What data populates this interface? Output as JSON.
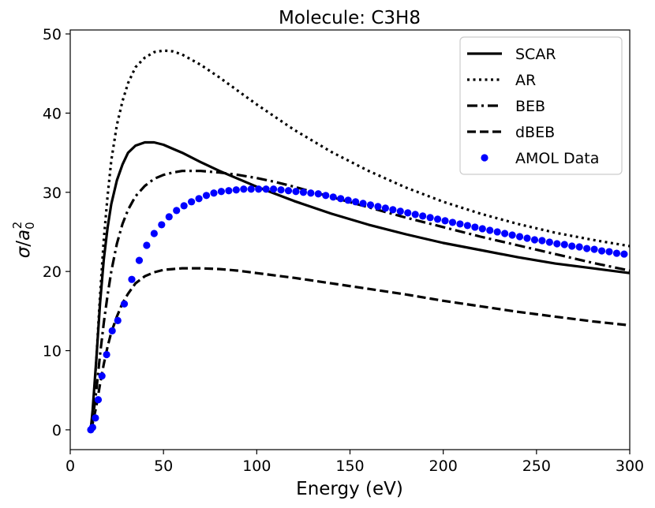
{
  "chart_data": {
    "type": "line",
    "title": "Molecule: C3H8",
    "xlabel": "Energy (eV)",
    "ylabel": "σ/a₀²",
    "xlim": [
      0,
      300
    ],
    "ylim": [
      -2.5,
      50.5
    ],
    "xticks": [
      0,
      50,
      100,
      150,
      200,
      250,
      300
    ],
    "yticks": [
      0,
      10,
      20,
      30,
      40,
      50
    ],
    "grid": false,
    "legend_position": "top-right",
    "series": [
      {
        "name": "SCAR",
        "style": "solid",
        "color": "#000000",
        "x": [
          11,
          12,
          14,
          16,
          18,
          20,
          22,
          25,
          28,
          31,
          35,
          40,
          45,
          50,
          55,
          60,
          70,
          80,
          90,
          100,
          120,
          140,
          160,
          180,
          200,
          220,
          240,
          260,
          280,
          300
        ],
        "y": [
          0,
          2.5,
          9,
          16,
          21.5,
          25.5,
          28.5,
          31.5,
          33.5,
          35,
          35.9,
          36.3,
          36.3,
          36,
          35.5,
          35,
          33.8,
          32.7,
          31.7,
          30.7,
          28.9,
          27.3,
          25.9,
          24.7,
          23.6,
          22.7,
          21.8,
          21,
          20.4,
          19.8
        ]
      },
      {
        "name": "AR",
        "style": "dotted",
        "color": "#000000",
        "x": [
          11,
          12,
          14,
          16,
          18,
          20,
          22,
          25,
          28,
          31,
          35,
          40,
          45,
          50,
          55,
          60,
          70,
          80,
          90,
          100,
          120,
          140,
          160,
          180,
          200,
          220,
          240,
          260,
          280,
          300
        ],
        "y": [
          0,
          2,
          9,
          17,
          24,
          29.5,
          34,
          38.5,
          41.5,
          43.8,
          45.8,
          47,
          47.7,
          47.9,
          47.8,
          47.4,
          46.1,
          44.5,
          42.8,
          41.1,
          37.9,
          35.1,
          32.7,
          30.6,
          28.8,
          27.3,
          26,
          24.9,
          24,
          23.2
        ]
      },
      {
        "name": "BEB",
        "style": "dashdot",
        "color": "#000000",
        "x": [
          11,
          12,
          14,
          16,
          18,
          20,
          22,
          25,
          28,
          31,
          35,
          40,
          45,
          50,
          55,
          60,
          65,
          70,
          80,
          90,
          100,
          110,
          120,
          140,
          160,
          180,
          200,
          220,
          240,
          260,
          280,
          300
        ],
        "y": [
          0,
          1.2,
          5,
          9.5,
          13.5,
          17,
          20,
          23.5,
          26,
          27.8,
          29.5,
          30.8,
          31.7,
          32.2,
          32.5,
          32.7,
          32.7,
          32.7,
          32.5,
          32.2,
          31.8,
          31.3,
          30.7,
          29.4,
          28.1,
          26.8,
          25.6,
          24.4,
          23.3,
          22.2,
          21.1,
          20.1
        ]
      },
      {
        "name": "dBEB",
        "style": "dashed",
        "color": "#000000",
        "x": [
          11,
          12,
          14,
          16,
          18,
          20,
          22,
          25,
          28,
          31,
          35,
          40,
          45,
          50,
          55,
          60,
          70,
          80,
          90,
          100,
          120,
          140,
          160,
          180,
          200,
          220,
          240,
          260,
          280,
          300
        ],
        "y": [
          0,
          0.8,
          3,
          5.8,
          8.3,
          10.5,
          12.3,
          14.3,
          16,
          17.2,
          18.5,
          19.4,
          19.9,
          20.2,
          20.3,
          20.4,
          20.4,
          20.3,
          20.1,
          19.8,
          19.2,
          18.5,
          17.8,
          17.1,
          16.3,
          15.6,
          14.9,
          14.3,
          13.7,
          13.2
        ]
      },
      {
        "name": "AMOL Data",
        "style": "markers",
        "color": "#0000ff",
        "x": [
          11,
          12,
          13.5,
          15,
          17,
          19.5,
          22.5,
          25.5,
          29,
          33,
          37,
          41,
          45,
          49,
          53,
          57,
          61,
          65,
          69,
          73,
          77,
          81,
          85,
          89,
          93,
          97,
          101,
          105,
          109,
          113,
          117,
          121,
          125,
          129,
          133,
          137,
          141,
          145,
          149,
          153,
          157,
          161,
          165,
          169,
          173,
          177,
          181,
          185,
          189,
          193,
          197,
          201,
          205,
          209,
          213,
          217,
          221,
          225,
          229,
          233,
          237,
          241,
          245,
          249,
          253,
          257,
          261,
          265,
          269,
          273,
          277,
          281,
          285,
          289,
          293,
          297
        ],
        "y": [
          0,
          0.3,
          1.5,
          3.8,
          6.8,
          9.5,
          12.5,
          13.8,
          15.9,
          19,
          21.4,
          23.3,
          24.8,
          25.9,
          26.9,
          27.7,
          28.3,
          28.8,
          29.2,
          29.6,
          29.9,
          30.1,
          30.2,
          30.3,
          30.4,
          30.4,
          30.4,
          30.4,
          30.4,
          30.3,
          30.2,
          30.1,
          30,
          29.9,
          29.8,
          29.6,
          29.4,
          29.2,
          29,
          28.8,
          28.6,
          28.4,
          28.2,
          28,
          27.8,
          27.6,
          27.4,
          27.2,
          27,
          26.8,
          26.6,
          26.4,
          26.2,
          26,
          25.8,
          25.6,
          25.4,
          25.2,
          25,
          24.8,
          24.6,
          24.4,
          24.2,
          24,
          23.9,
          23.7,
          23.5,
          23.4,
          23.2,
          23.1,
          22.9,
          22.8,
          22.6,
          22.5,
          22.3,
          22.2
        ]
      }
    ]
  }
}
